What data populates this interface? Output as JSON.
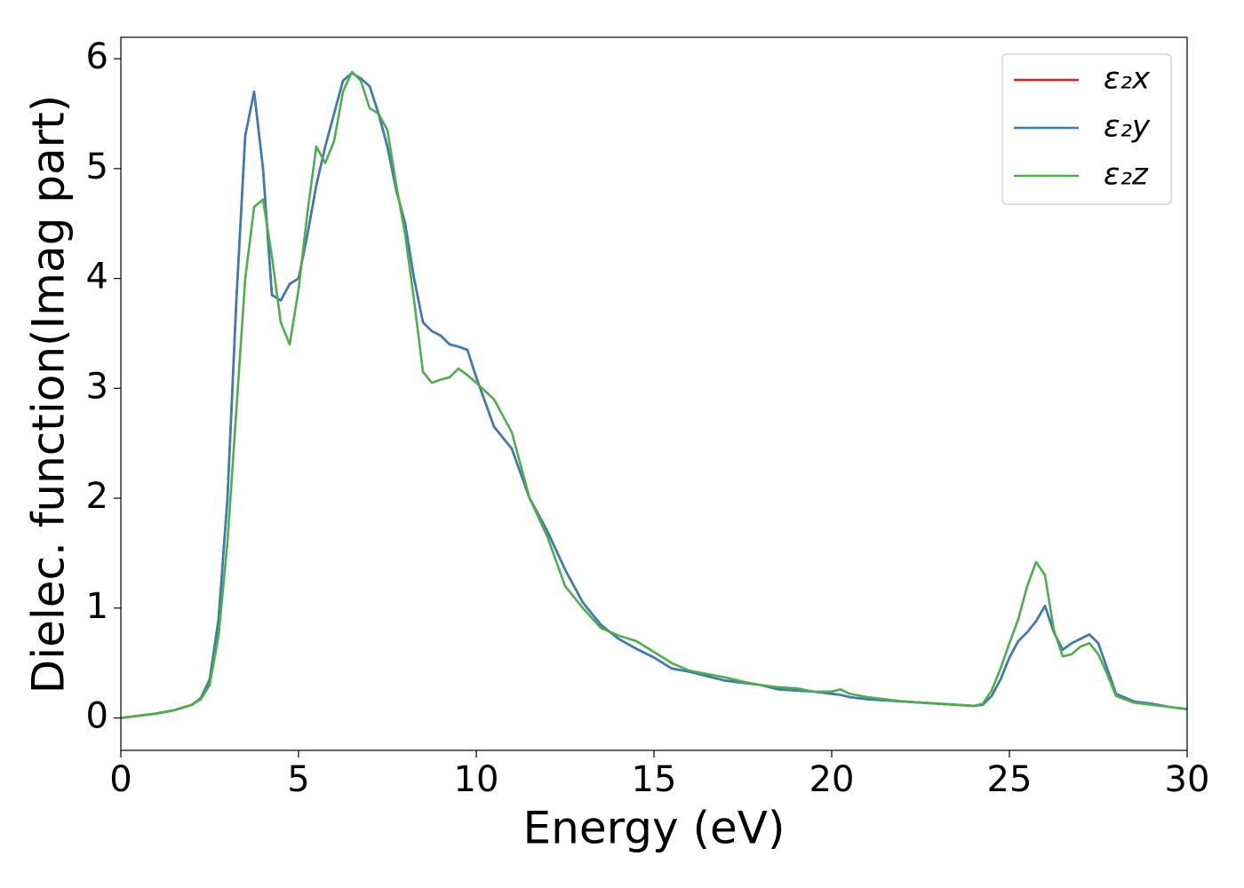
{
  "chart_data": {
    "type": "line",
    "xlabel": "Energy (eV)",
    "ylabel": "Dielec. function(Imag part)",
    "xlim": [
      0,
      30
    ],
    "ylim": [
      -0.295,
      6.195
    ],
    "xticks": [
      0,
      5,
      10,
      15,
      20,
      25,
      30
    ],
    "yticks": [
      0,
      1,
      2,
      3,
      4,
      5,
      6
    ],
    "grid": false,
    "legend": "upper right",
    "x": [
      0,
      0.5,
      1,
      1.5,
      2,
      2.25,
      2.5,
      2.75,
      3,
      3.25,
      3.5,
      3.75,
      4,
      4.25,
      4.5,
      4.75,
      5,
      5.25,
      5.5,
      5.75,
      6,
      6.25,
      6.5,
      6.75,
      7,
      7.25,
      7.5,
      7.75,
      8,
      8.25,
      8.5,
      8.75,
      9,
      9.25,
      9.5,
      9.75,
      10,
      10.5,
      11,
      11.5,
      12,
      12.5,
      13,
      13.5,
      14,
      14.5,
      15,
      15.5,
      16,
      16.5,
      17,
      17.5,
      18,
      18.5,
      19,
      19.5,
      20,
      20.25,
      20.5,
      21,
      21.5,
      22,
      22.5,
      23,
      23.5,
      24,
      24.25,
      24.5,
      24.75,
      25,
      25.25,
      25.5,
      25.75,
      26,
      26.25,
      26.5,
      26.75,
      27,
      27.25,
      27.5,
      27.75,
      28,
      28.5,
      29,
      29.5,
      30
    ],
    "series": [
      {
        "name": "ε₂x",
        "color": "#e41a1c",
        "values": [
          0,
          0.02,
          0.04,
          0.07,
          0.12,
          0.18,
          0.35,
          0.9,
          2.0,
          3.8,
          5.3,
          5.7,
          5.0,
          3.85,
          3.8,
          3.95,
          4.0,
          4.4,
          4.85,
          5.2,
          5.5,
          5.8,
          5.87,
          5.82,
          5.75,
          5.5,
          5.2,
          4.8,
          4.5,
          4.0,
          3.6,
          3.52,
          3.48,
          3.4,
          3.38,
          3.35,
          3.1,
          2.65,
          2.45,
          2.0,
          1.7,
          1.35,
          1.05,
          0.85,
          0.72,
          0.63,
          0.55,
          0.45,
          0.42,
          0.38,
          0.34,
          0.32,
          0.3,
          0.26,
          0.25,
          0.24,
          0.22,
          0.21,
          0.19,
          0.17,
          0.16,
          0.15,
          0.14,
          0.13,
          0.12,
          0.11,
          0.12,
          0.2,
          0.35,
          0.55,
          0.7,
          0.78,
          0.88,
          1.02,
          0.78,
          0.62,
          0.68,
          0.72,
          0.76,
          0.68,
          0.45,
          0.22,
          0.15,
          0.13,
          0.1,
          0.08
        ]
      },
      {
        "name": "ε₂y",
        "color": "#377eb8",
        "values": [
          0,
          0.02,
          0.04,
          0.07,
          0.12,
          0.18,
          0.35,
          0.9,
          2.0,
          3.8,
          5.3,
          5.7,
          5.0,
          3.85,
          3.8,
          3.95,
          4.0,
          4.4,
          4.85,
          5.2,
          5.5,
          5.8,
          5.87,
          5.82,
          5.75,
          5.5,
          5.2,
          4.8,
          4.5,
          4.0,
          3.6,
          3.52,
          3.48,
          3.4,
          3.38,
          3.35,
          3.1,
          2.65,
          2.45,
          2.0,
          1.7,
          1.35,
          1.05,
          0.85,
          0.72,
          0.63,
          0.55,
          0.45,
          0.42,
          0.38,
          0.34,
          0.32,
          0.3,
          0.26,
          0.25,
          0.24,
          0.22,
          0.21,
          0.19,
          0.17,
          0.16,
          0.15,
          0.14,
          0.13,
          0.12,
          0.11,
          0.12,
          0.2,
          0.35,
          0.55,
          0.7,
          0.78,
          0.88,
          1.02,
          0.78,
          0.62,
          0.68,
          0.72,
          0.76,
          0.68,
          0.45,
          0.22,
          0.15,
          0.13,
          0.1,
          0.08
        ]
      },
      {
        "name": "ε₂z",
        "color": "#4daf4a",
        "values": [
          0,
          0.02,
          0.04,
          0.07,
          0.12,
          0.17,
          0.3,
          0.75,
          1.6,
          2.8,
          4.0,
          4.65,
          4.72,
          4.2,
          3.6,
          3.4,
          3.9,
          4.6,
          5.2,
          5.05,
          5.25,
          5.7,
          5.88,
          5.8,
          5.55,
          5.5,
          5.35,
          4.85,
          4.4,
          3.8,
          3.15,
          3.05,
          3.08,
          3.1,
          3.18,
          3.12,
          3.05,
          2.9,
          2.6,
          2.0,
          1.65,
          1.2,
          1.0,
          0.82,
          0.75,
          0.7,
          0.6,
          0.5,
          0.43,
          0.4,
          0.37,
          0.33,
          0.3,
          0.28,
          0.27,
          0.24,
          0.24,
          0.26,
          0.22,
          0.19,
          0.17,
          0.15,
          0.14,
          0.13,
          0.12,
          0.11,
          0.13,
          0.25,
          0.45,
          0.68,
          0.9,
          1.2,
          1.42,
          1.3,
          0.8,
          0.56,
          0.58,
          0.65,
          0.68,
          0.58,
          0.4,
          0.2,
          0.14,
          0.12,
          0.1,
          0.08
        ]
      }
    ]
  }
}
